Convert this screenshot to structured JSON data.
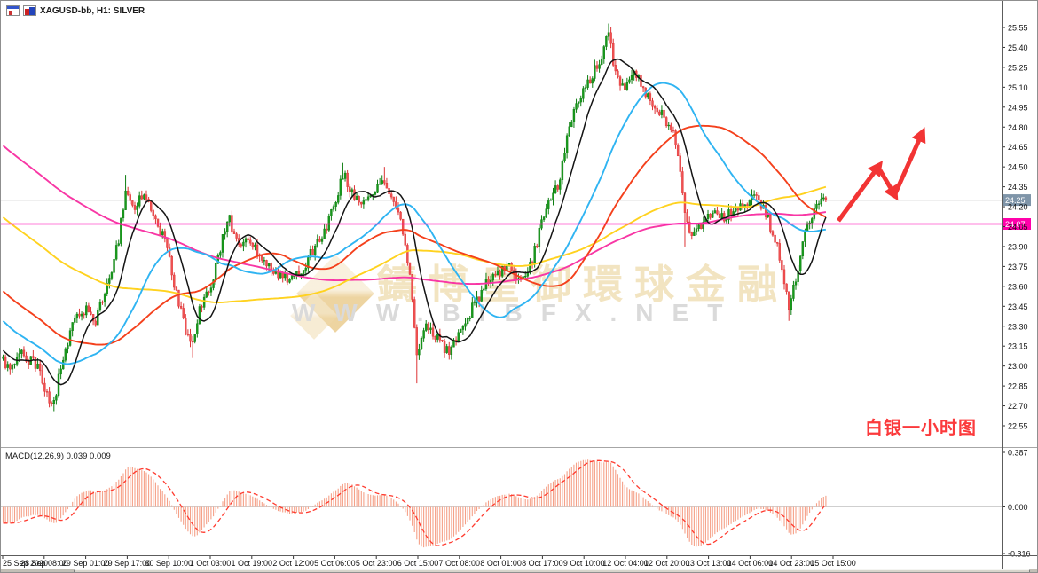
{
  "window": {
    "title": "XAGUSD-bb, H1: SILVER"
  },
  "watermark": {
    "brand": "鑄博皇御環球金融",
    "site": "WWW.BIBFX.NET",
    "brand_color": "#f2e4c1",
    "site_color": "#dadada"
  },
  "annotation": {
    "label": "白银一小时图",
    "color": "#fb3a3c"
  },
  "macd_pane": {
    "label": "MACD(12,26,9) 0.039 0.009",
    "axis_labels": [
      "0.387",
      "0.000",
      "-0.316"
    ],
    "bar_color": "#f5a188",
    "signal_color": "#ff3a2e",
    "zero_line_color": "#cfcfcf"
  },
  "price_axis": {
    "tick_labels": [
      "25.55",
      "25.40",
      "25.25",
      "25.10",
      "24.95",
      "24.80",
      "24.65",
      "24.50",
      "24.35",
      "24.20",
      "24.05",
      "23.90",
      "23.75",
      "23.60",
      "23.45",
      "23.30",
      "23.15",
      "23.00",
      "22.85",
      "22.70",
      "22.55"
    ]
  },
  "time_axis": {
    "labels": [
      "25 Sep 2020",
      "28 Sep 08:00",
      "29 Sep 01:00",
      "29 Sep 17:00",
      "30 Sep 10:00",
      "1 Oct 03:00",
      "1 Oct 19:00",
      "2 Oct 12:00",
      "5 Oct 06:00",
      "5 Oct 23:00",
      "6 Oct 15:00",
      "7 Oct 08:00",
      "8 Oct 01:00",
      "8 Oct 17:00",
      "9 Oct 10:00",
      "12 Oct 04:00",
      "12 Oct 20:00",
      "13 Oct 13:00",
      "14 Oct 06:00",
      "14 Oct 23:00",
      "15 Oct 15:00"
    ]
  },
  "hlines": [
    {
      "name": "bid-line",
      "label": "24.25",
      "price": 24.25,
      "line_color": "#808080",
      "box_color": "#7f95a9",
      "width": 1
    },
    {
      "name": "support-line",
      "label": "24.07",
      "price": 24.07,
      "line_color": "#ff00b4",
      "box_color": "#ff00aa",
      "width": 1.6
    }
  ],
  "arrows": {
    "color": "#f23434",
    "stroke_width": 5,
    "segments": [
      [
        944,
        248,
        989,
        187
      ],
      [
        991,
        191,
        1007,
        218
      ],
      [
        1006,
        222,
        1038,
        150
      ]
    ]
  },
  "chart_data": {
    "type": "candlestick",
    "symbol": "XAGUSD",
    "timeframe": "H1",
    "title": "XAGUSD-bb, H1: SILVER",
    "price_axis_range": [
      22.55,
      25.55
    ],
    "price_axis_step": 0.15,
    "macd_axis_range": [
      -0.316,
      0.387
    ],
    "candle_count": 357,
    "seed": 20201015,
    "noise": 0.042,
    "up_color": "#17991b",
    "up_stroke": "#0d7d11",
    "down_color": "#ef5051",
    "down_stroke": "#dd3335",
    "close_anchors": [
      [
        0,
        23.05
      ],
      [
        3,
        22.95
      ],
      [
        7,
        23.1
      ],
      [
        15,
        23.0
      ],
      [
        18,
        22.8
      ],
      [
        22,
        22.72
      ],
      [
        25,
        23.0
      ],
      [
        30,
        23.3
      ],
      [
        36,
        23.45
      ],
      [
        40,
        23.35
      ],
      [
        45,
        23.6
      ],
      [
        50,
        23.95
      ],
      [
        53,
        24.35
      ],
      [
        56,
        24.2
      ],
      [
        61,
        24.28
      ],
      [
        65,
        24.15
      ],
      [
        70,
        23.95
      ],
      [
        75,
        23.55
      ],
      [
        79,
        23.28
      ],
      [
        82,
        23.15
      ],
      [
        85,
        23.45
      ],
      [
        90,
        23.6
      ],
      [
        95,
        23.95
      ],
      [
        98,
        24.1
      ],
      [
        102,
        23.9
      ],
      [
        107,
        23.95
      ],
      [
        113,
        23.8
      ],
      [
        118,
        23.7
      ],
      [
        124,
        23.65
      ],
      [
        130,
        23.75
      ],
      [
        135,
        23.9
      ],
      [
        140,
        24.05
      ],
      [
        145,
        24.3
      ],
      [
        147,
        24.45
      ],
      [
        151,
        24.3
      ],
      [
        156,
        24.25
      ],
      [
        161,
        24.3
      ],
      [
        165,
        24.42
      ],
      [
        170,
        24.2
      ],
      [
        174,
        23.95
      ],
      [
        177,
        23.5
      ],
      [
        179,
        23.05
      ],
      [
        183,
        23.3
      ],
      [
        188,
        23.2
      ],
      [
        193,
        23.1
      ],
      [
        199,
        23.3
      ],
      [
        205,
        23.5
      ],
      [
        210,
        23.65
      ],
      [
        215,
        23.7
      ],
      [
        219,
        23.75
      ],
      [
        224,
        23.65
      ],
      [
        229,
        23.8
      ],
      [
        235,
        24.2
      ],
      [
        240,
        24.35
      ],
      [
        245,
        24.8
      ],
      [
        249,
        25.0
      ],
      [
        254,
        25.15
      ],
      [
        258,
        25.3
      ],
      [
        262,
        25.5
      ],
      [
        265,
        25.2
      ],
      [
        269,
        25.1
      ],
      [
        273,
        25.25
      ],
      [
        277,
        25.1
      ],
      [
        282,
        24.95
      ],
      [
        287,
        24.85
      ],
      [
        291,
        24.7
      ],
      [
        295,
        24.15
      ],
      [
        297,
        24.0
      ],
      [
        302,
        24.05
      ],
      [
        307,
        24.15
      ],
      [
        312,
        24.1
      ],
      [
        317,
        24.2
      ],
      [
        322,
        24.25
      ],
      [
        326,
        24.3
      ],
      [
        331,
        24.1
      ],
      [
        335,
        23.9
      ],
      [
        340,
        23.45
      ],
      [
        344,
        23.7
      ],
      [
        347,
        24.0
      ],
      [
        351,
        24.15
      ],
      [
        355,
        24.28
      ],
      [
        356,
        24.25
      ]
    ],
    "wick_spikes": [
      {
        "i": 22,
        "l": 22.66
      },
      {
        "i": 53,
        "h": 24.44
      },
      {
        "i": 82,
        "l": 23.06
      },
      {
        "i": 147,
        "h": 24.53
      },
      {
        "i": 165,
        "h": 24.5
      },
      {
        "i": 179,
        "l": 22.87
      },
      {
        "i": 262,
        "h": 25.58
      },
      {
        "i": 295,
        "l": 23.9
      },
      {
        "i": 340,
        "l": 23.34
      }
    ],
    "warmup_anchors": [
      [
        0,
        26.3
      ],
      [
        50,
        25.5
      ],
      [
        100,
        24.85
      ],
      [
        150,
        24.25
      ],
      [
        200,
        23.5
      ],
      [
        229,
        23.05
      ]
    ],
    "moving_averages": [
      {
        "name": "ma-slow-magenta",
        "period": 230,
        "color": "#f837a5",
        "width": 1.9
      },
      {
        "name": "ma-long-yellow",
        "period": 150,
        "color": "#ffd21f",
        "width": 1.9
      },
      {
        "name": "ma-mid-orange",
        "period": 70,
        "color": "#f4401c",
        "width": 1.9
      },
      {
        "name": "ma-fast-cyan",
        "period": 40,
        "color": "#2fb4f2",
        "width": 1.9
      },
      {
        "name": "ma-fastest-black",
        "period": 12,
        "color": "#141414",
        "width": 1.5
      }
    ],
    "macd": {
      "fast": 12,
      "slow": 26,
      "signal": 9
    }
  }
}
